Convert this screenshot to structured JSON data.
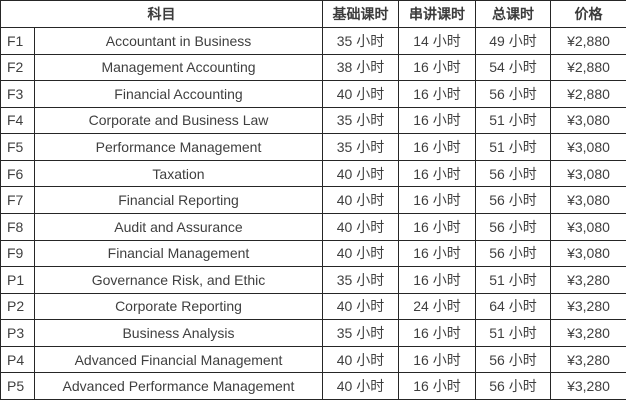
{
  "colors": {
    "border": "#262626",
    "text": "#3f3f3f",
    "background": "#ffffff"
  },
  "chart_data": {
    "type": "table",
    "headers": {
      "subject": "科目",
      "basic": "基础课时",
      "review": "串讲课时",
      "total": "总课时",
      "price": "价格"
    },
    "rows": [
      {
        "code": "F1",
        "name": "Accountant in Business",
        "basic": "35 小时",
        "review": "14 小时",
        "total": "49 小时",
        "price": "¥2,880"
      },
      {
        "code": "F2",
        "name": "Management Accounting",
        "basic": "38 小时",
        "review": "16 小时",
        "total": "54 小时",
        "price": "¥2,880"
      },
      {
        "code": "F3",
        "name": "Financial Accounting",
        "basic": "40 小时",
        "review": "16 小时",
        "total": "56 小时",
        "price": "¥2,880"
      },
      {
        "code": "F4",
        "name": "Corporate and Business Law",
        "basic": "35 小时",
        "review": "16 小时",
        "total": "51 小时",
        "price": "¥3,080"
      },
      {
        "code": "F5",
        "name": "Performance Management",
        "basic": "35 小时",
        "review": "16 小时",
        "total": "51 小时",
        "price": "¥3,080"
      },
      {
        "code": "F6",
        "name": "Taxation",
        "basic": "40 小时",
        "review": "16 小时",
        "total": "56 小时",
        "price": "¥3,080"
      },
      {
        "code": "F7",
        "name": "Financial Reporting",
        "basic": "40 小时",
        "review": "16 小时",
        "total": "56 小时",
        "price": "¥3,080"
      },
      {
        "code": "F8",
        "name": "Audit and Assurance",
        "basic": "40 小时",
        "review": "16 小时",
        "total": "56 小时",
        "price": "¥3,080"
      },
      {
        "code": "F9",
        "name": "Financial Management",
        "basic": "40 小时",
        "review": "16 小时",
        "total": "56 小时",
        "price": "¥3,080"
      },
      {
        "code": "P1",
        "name": "Governance Risk, and Ethic",
        "basic": "35 小时",
        "review": "16 小时",
        "total": "51 小时",
        "price": "¥3,280"
      },
      {
        "code": "P2",
        "name": "Corporate Reporting",
        "basic": "40 小时",
        "review": "24 小时",
        "total": "64 小时",
        "price": "¥3,280"
      },
      {
        "code": "P3",
        "name": "Business Analysis",
        "basic": "35 小时",
        "review": "16 小时",
        "total": "51 小时",
        "price": "¥3,280"
      },
      {
        "code": "P4",
        "name": "Advanced Financial Management",
        "basic": "40 小时",
        "review": "16 小时",
        "total": "56 小时",
        "price": "¥3,280"
      },
      {
        "code": "P5",
        "name": "Advanced Performance Management",
        "basic": "40 小时",
        "review": "16 小时",
        "total": "56 小时",
        "price": "¥3,280"
      }
    ]
  }
}
